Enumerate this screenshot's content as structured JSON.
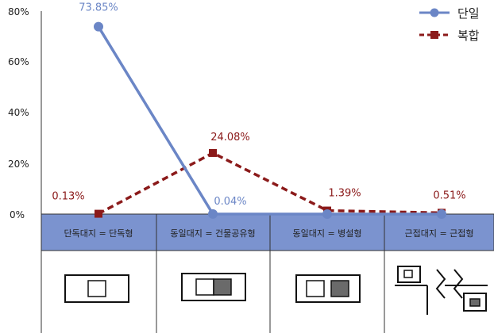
{
  "chart_data": {
    "type": "line",
    "categories": [
      "단독대지 = 단독형",
      "동일대지 = 건물공유형",
      "동일대지 = 병설형",
      "근접대지 = 근접형"
    ],
    "ylim": [
      0,
      80
    ],
    "yticks": [
      "0%",
      "20%",
      "40%",
      "60%",
      "80%"
    ],
    "series": [
      {
        "name": "단일",
        "values": [
          73.85,
          0.04,
          0,
          0
        ],
        "labels": [
          "73.85%",
          "0.04%",
          "",
          ""
        ],
        "color": "#6b86c6",
        "style": "solid",
        "marker": "circle"
      },
      {
        "name": "복합",
        "values": [
          0.13,
          24.08,
          1.39,
          0.51
        ],
        "labels": [
          "0.13%",
          "24.08%",
          "1.39%",
          "0.51%"
        ],
        "color": "#8b1a1a",
        "style": "dashed",
        "marker": "square"
      }
    ],
    "legend": "top-right",
    "grid": false
  },
  "colors": {
    "band": "#7b93cf",
    "band_border": "#333333",
    "building_fill": "#6a6a6a"
  }
}
